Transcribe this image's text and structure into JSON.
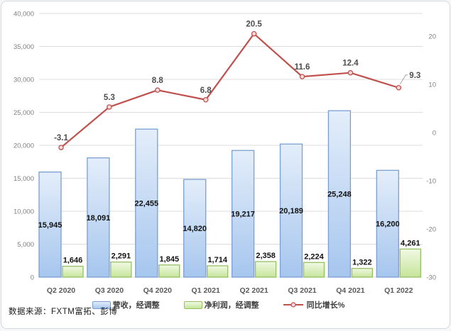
{
  "chart_data": {
    "type": "combo-bar-line",
    "categories": [
      "Q2 2020",
      "Q3 2020",
      "Q4 2020",
      "Q1 2021",
      "Q2 2021",
      "Q3 2021",
      "Q4 2021",
      "Q1 2022"
    ],
    "series": [
      {
        "name": "营收，经调整",
        "type": "bar",
        "axis": "left",
        "values": [
          15945,
          18091,
          22455,
          14820,
          19217,
          20189,
          25248,
          16200
        ],
        "labels": [
          "15,945",
          "18,091",
          "22,455",
          "14,820",
          "19,217",
          "20,189",
          "25,248",
          "16,200"
        ],
        "fill_top": "#E4EEFA",
        "fill_bottom": "#A6C6EE",
        "border": "#7B9FD3"
      },
      {
        "name": "净利润，经调整",
        "type": "bar",
        "axis": "left",
        "values": [
          1646,
          2291,
          1845,
          1714,
          2358,
          2224,
          1322,
          4261
        ],
        "labels": [
          "1,646",
          "2,291",
          "1,845",
          "1,714",
          "2,358",
          "2,224",
          "1,322",
          "4,261"
        ],
        "fill_top": "#F1F9E4",
        "fill_bottom": "#C6E59B",
        "border": "#96BF64"
      },
      {
        "name": "同比增长%",
        "type": "line",
        "axis": "right",
        "values": [
          -3.1,
          5.3,
          8.8,
          6.8,
          20.5,
          11.6,
          12.4,
          9.3
        ],
        "labels": [
          "-3.1",
          "5.3",
          "8.8",
          "6.8",
          "20.5",
          "11.6",
          "12.4",
          "9.3"
        ],
        "color": "#C0504D",
        "marker_fill": "#F4DCDA",
        "last_label_callout": true
      }
    ],
    "left_axis": {
      "min": 0,
      "max": 40000,
      "step": 5000,
      "tick_labels": [
        "40,000",
        "35,000",
        "30,000",
        "25,000",
        "20,000",
        "15,000",
        "10,000",
        "5,000",
        "0"
      ]
    },
    "right_axis": {
      "min": -30,
      "max": 20,
      "step": 10,
      "tick_labels": [
        "20",
        "10",
        "0",
        "-10",
        "-20",
        "-30"
      ],
      "tick_values": [
        20,
        10,
        0,
        -10,
        -20,
        -30
      ]
    },
    "grid": true,
    "legend_position": "bottom",
    "colors": {
      "gridline": "#DCDCDC",
      "tick_text": "#7F7F7F",
      "bar_label": "#111111",
      "line_label": "#4D4D4D",
      "category_label": "#595959",
      "callout_leader": "#A6A6A6"
    }
  },
  "footer": {
    "source": "数据来源：FXTM富拓、彭博"
  }
}
